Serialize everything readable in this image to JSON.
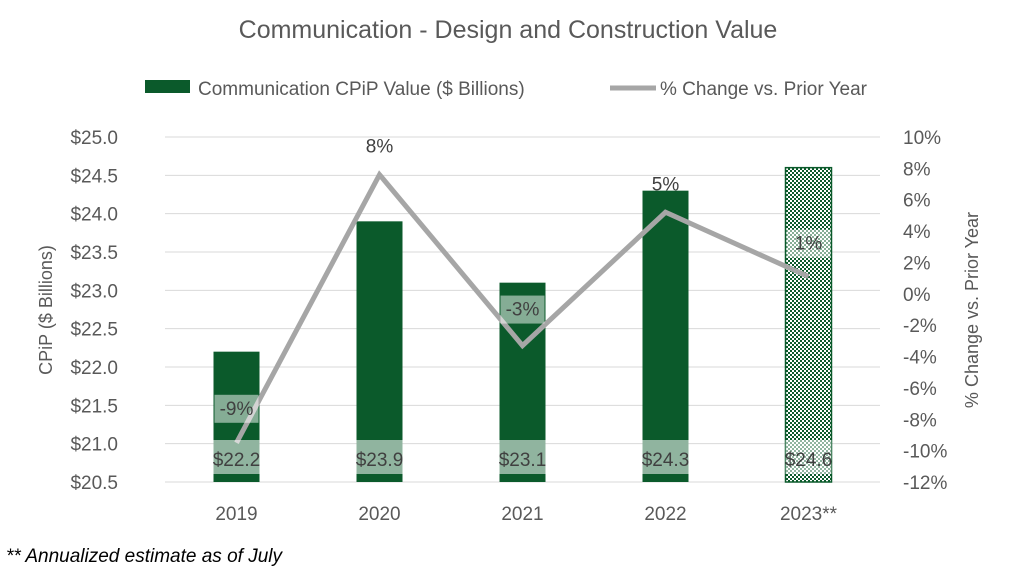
{
  "chart_data": {
    "type": "bar",
    "title": "Communication - Design and Construction Value",
    "categories": [
      "2019",
      "2020",
      "2021",
      "2022",
      "2023**"
    ],
    "series": [
      {
        "name": "Communication CPiP Value ($ Billions)",
        "type": "bar",
        "axis": "left",
        "values": [
          22.2,
          23.9,
          23.1,
          24.3,
          24.6
        ],
        "labels": [
          "$22.2",
          "$23.9",
          "$23.1",
          "$24.3",
          "$24.6"
        ],
        "color": "#0b5a2b",
        "estimated": [
          false,
          false,
          false,
          false,
          true
        ]
      },
      {
        "name": "% Change vs. Prior Year",
        "type": "line",
        "axis": "right",
        "values": [
          -9.5,
          7.6,
          -3.3,
          5.2,
          1.1
        ],
        "labels": [
          "-9%",
          "8%",
          "-3%",
          "5%",
          "1%"
        ],
        "color": "#a6a6a6"
      }
    ],
    "y_left": {
      "label": "CPiP ($ Billions)",
      "range": [
        20.5,
        25.0
      ],
      "ticks": [
        20.5,
        21.0,
        21.5,
        22.0,
        22.5,
        23.0,
        23.5,
        24.0,
        24.5,
        25.0
      ],
      "tick_labels": [
        "$20.5",
        "$21.0",
        "$21.5",
        "$22.0",
        "$22.5",
        "$23.0",
        "$23.5",
        "$24.0",
        "$24.5",
        "$25.0"
      ]
    },
    "y_right": {
      "label": "% Change vs. Prior Year",
      "range": [
        -12,
        10
      ],
      "ticks": [
        -12,
        -10,
        -8,
        -6,
        -4,
        -2,
        0,
        2,
        4,
        6,
        8,
        10
      ],
      "tick_labels": [
        "-12%",
        "-10%",
        "-8%",
        "-6%",
        "-4%",
        "-2%",
        "0%",
        "2%",
        "4%",
        "6%",
        "8%",
        "10%"
      ]
    },
    "grid": true,
    "legend_position": "top"
  },
  "footnote": "** Annualized estimate as of July"
}
